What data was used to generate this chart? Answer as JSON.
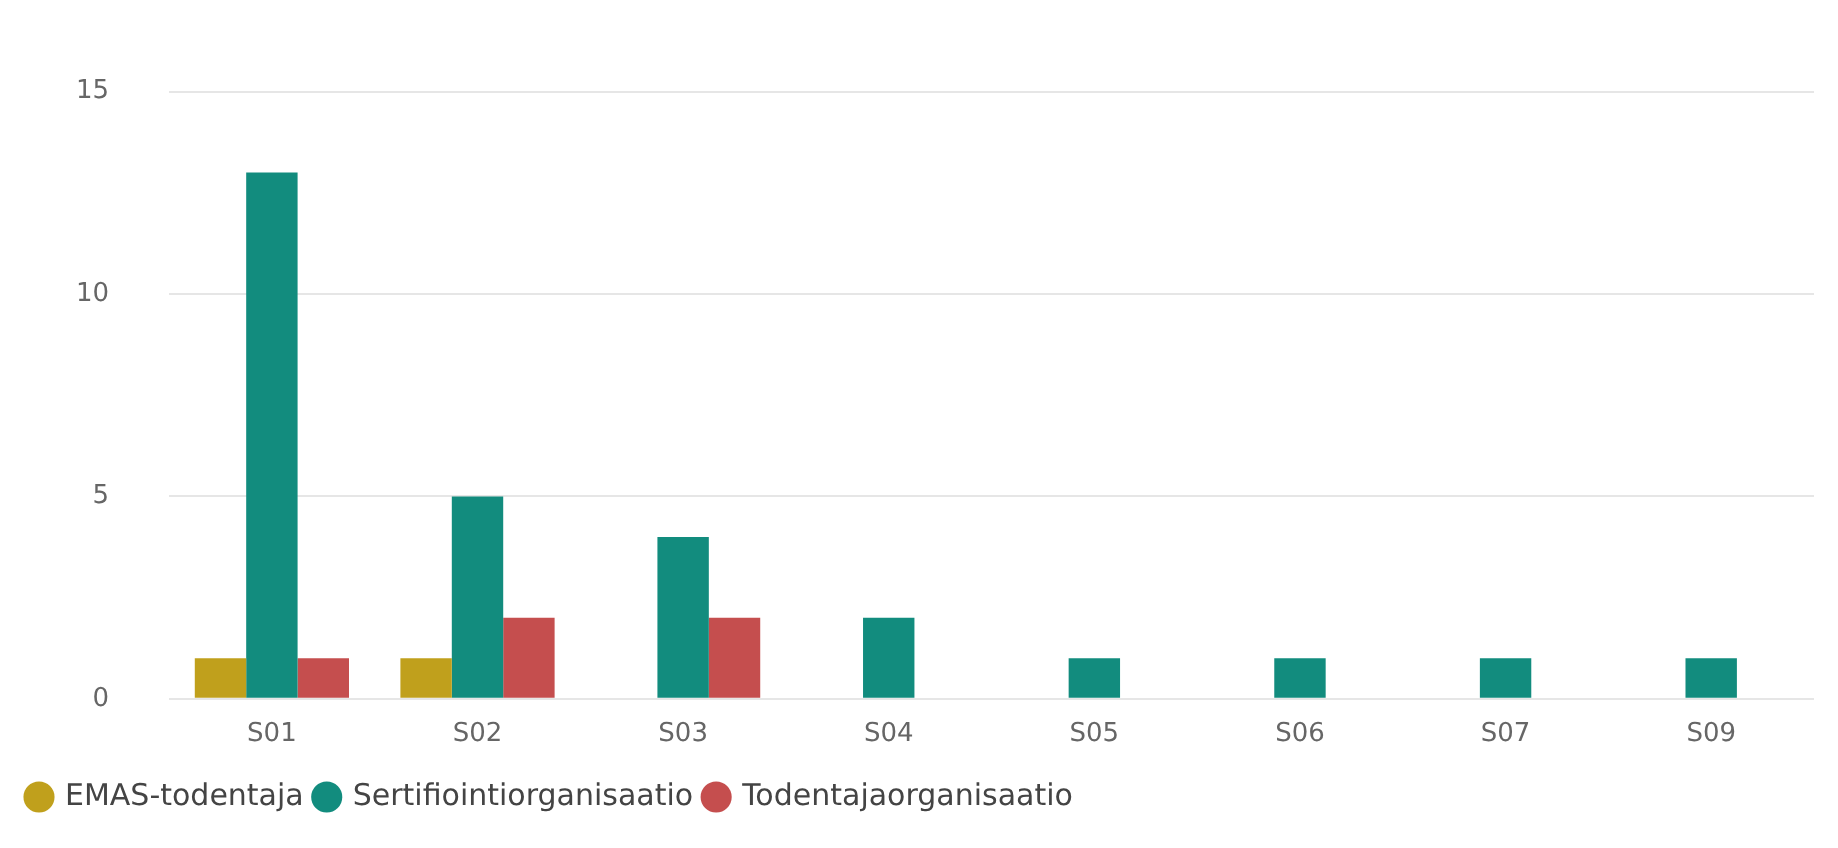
{
  "chart_data": {
    "type": "bar",
    "categories": [
      "S01",
      "S02",
      "S03",
      "S04",
      "S05",
      "S06",
      "S07",
      "S09"
    ],
    "series": [
      {
        "name": "EMAS-todentaja",
        "color": "#c0a01c",
        "values": [
          1,
          1,
          null,
          null,
          null,
          null,
          null,
          null
        ]
      },
      {
        "name": "Sertifiointiorganisaatio",
        "color": "#128c7e",
        "values": [
          13,
          5,
          4,
          2,
          1,
          1,
          1,
          1
        ]
      },
      {
        "name": "Todentajaorganisaatio",
        "color": "#c54e4e",
        "values": [
          1,
          2,
          2,
          null,
          null,
          null,
          null,
          null
        ]
      }
    ],
    "ylim": [
      0,
      15
    ],
    "yticks": [
      0,
      5,
      10,
      15
    ],
    "grid": "y",
    "legend": "bottom left",
    "marker": "circle"
  }
}
